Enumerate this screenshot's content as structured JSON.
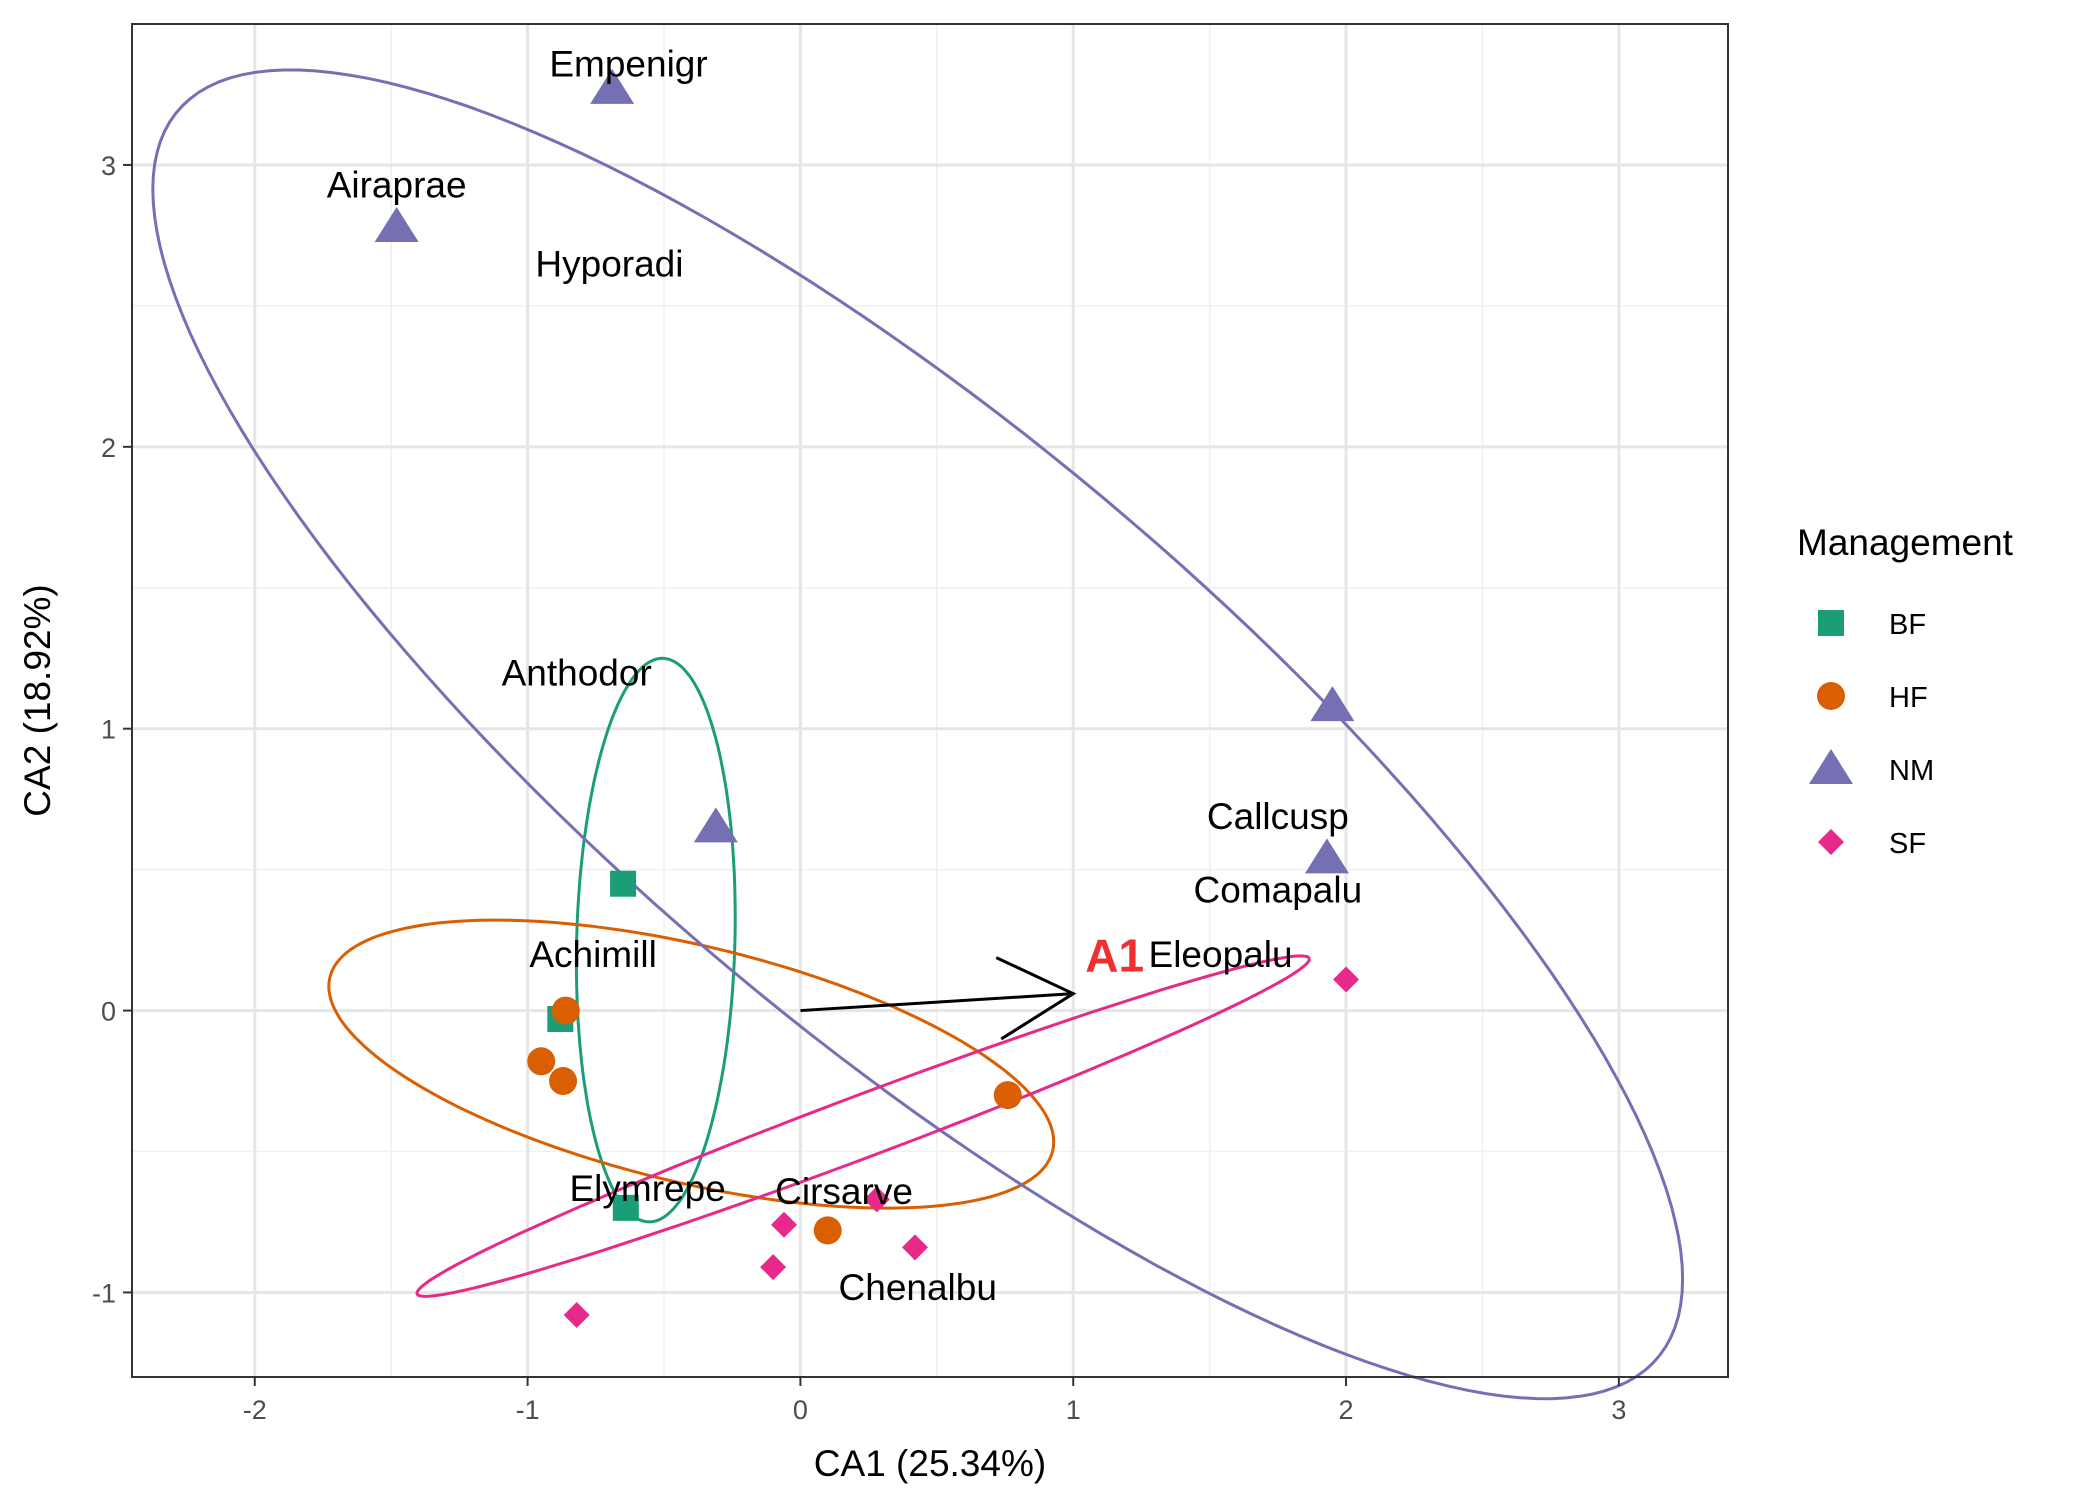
{
  "chart_data": {
    "type": "scatter",
    "xlabel": "CA1 (25.34%)",
    "ylabel": "CA2 (18.92%)",
    "xlim": [
      -2.45,
      3.4
    ],
    "ylim": [
      -1.3,
      3.5
    ],
    "x_ticks": [
      -2,
      -1,
      0,
      1,
      2,
      3
    ],
    "y_ticks": [
      -1,
      0,
      1,
      2,
      3
    ],
    "x_tick_labels": [
      "-2",
      "-1",
      "0",
      "1",
      "2",
      "3"
    ],
    "y_tick_labels": [
      "-1",
      "0",
      "1",
      "2",
      "3"
    ],
    "grid": true,
    "legend": {
      "title": "Management",
      "placement": "right",
      "entries": [
        "BF",
        "HF",
        "NM",
        "SF"
      ]
    },
    "series": [
      {
        "name": "BF",
        "shape": "square",
        "color": "#1b9e77",
        "points": [
          [
            -0.65,
            0.45
          ],
          [
            -0.88,
            -0.03
          ],
          [
            -0.64,
            -0.7
          ]
        ]
      },
      {
        "name": "HF",
        "shape": "circle",
        "color": "#d95f02",
        "points": [
          [
            -0.86,
            0.0
          ],
          [
            -0.95,
            -0.18
          ],
          [
            -0.87,
            -0.25
          ],
          [
            0.76,
            -0.3
          ],
          [
            0.1,
            -0.78
          ]
        ]
      },
      {
        "name": "NM",
        "shape": "triangle",
        "color": "#7570b3",
        "points": [
          [
            -0.69,
            3.27
          ],
          [
            -1.48,
            2.78
          ],
          [
            1.95,
            1.08
          ],
          [
            -0.31,
            0.65
          ],
          [
            1.93,
            0.54
          ]
        ]
      },
      {
        "name": "SF",
        "shape": "diamond",
        "color": "#e7298a",
        "points": [
          [
            2.0,
            0.11
          ],
          [
            -0.06,
            -0.76
          ],
          [
            0.28,
            -0.67
          ],
          [
            -0.1,
            -0.91
          ],
          [
            0.42,
            -0.84
          ],
          [
            -0.82,
            -1.08
          ]
        ]
      }
    ],
    "ellipses": [
      {
        "group": "BF",
        "color": "#1b9e77",
        "cx": -0.53,
        "cy": 0.25,
        "rx": 0.29,
        "ry": 1.0,
        "angle_deg": -1.5
      },
      {
        "group": "HF",
        "color": "#d95f02",
        "cx": -0.4,
        "cy": -0.19,
        "rx": 1.36,
        "ry": 0.42,
        "angle_deg": -13
      },
      {
        "group": "NM",
        "color": "#7570b3",
        "cx": 0.43,
        "cy": 0.98,
        "rx": 3.5,
        "ry": 1.08,
        "angle_deg": -39
      },
      {
        "group": "SF",
        "color": "#e7298a",
        "cx": 0.23,
        "cy": -0.41,
        "rx": 1.74,
        "ry": 0.11,
        "angle_deg": 20
      }
    ],
    "species": [
      {
        "name": "Empenigr",
        "x": -0.63,
        "y": 3.36
      },
      {
        "name": "Airaprae",
        "x": -1.48,
        "y": 2.93
      },
      {
        "name": "Hyporadi",
        "x": -0.7,
        "y": 2.65
      },
      {
        "name": "Anthodor",
        "x": -0.82,
        "y": 1.2
      },
      {
        "name": "Callcusp",
        "x": 1.75,
        "y": 0.69
      },
      {
        "name": "Comapalu",
        "x": 1.75,
        "y": 0.43
      },
      {
        "name": "Eleopalu",
        "x": 1.54,
        "y": 0.2
      },
      {
        "name": "Achimill",
        "x": -0.76,
        "y": 0.2
      },
      {
        "name": "Elymrepe",
        "x": -0.56,
        "y": -0.63
      },
      {
        "name": "Cirsarve",
        "x": 0.16,
        "y": -0.64
      },
      {
        "name": "Chenalbu",
        "x": 0.43,
        "y": -0.98
      }
    ],
    "arrow": {
      "label": "A1",
      "label_color": "#f03030",
      "from": [
        0.0,
        0.0
      ],
      "to": [
        1.0,
        0.06
      ]
    }
  }
}
